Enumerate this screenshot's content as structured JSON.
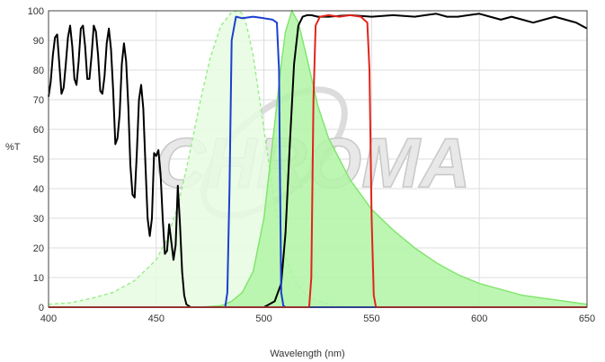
{
  "watermark": "CHROMA",
  "chart_data": {
    "type": "area",
    "xlabel": "Wavelength (nm)",
    "ylabel": "%T",
    "xlim": [
      400,
      650
    ],
    "ylim": [
      0,
      100
    ],
    "x_ticks": [
      400,
      450,
      500,
      550,
      600,
      650
    ],
    "y_ticks": [
      0,
      10,
      20,
      30,
      40,
      50,
      60,
      70,
      80,
      90,
      100
    ],
    "grid": true,
    "legend": "none",
    "series": [
      {
        "kind": "area",
        "fill": "#e6fbe2",
        "stroke": "#9cee8c",
        "dashed": true,
        "x": [
          400,
          410,
          420,
          430,
          440,
          450,
          455,
          460,
          465,
          470,
          475,
          480,
          485,
          488,
          490,
          492,
          495,
          500,
          505,
          510,
          515,
          520,
          525,
          530,
          535,
          540
        ],
        "y": [
          1,
          1.5,
          3,
          5,
          9,
          16,
          23,
          34,
          50,
          68,
          84,
          95,
          99.5,
          100,
          99,
          95,
          85,
          60,
          35,
          17,
          8,
          4,
          2,
          1,
          0.5,
          0
        ]
      },
      {
        "kind": "area",
        "fill": "#b2f5a6",
        "stroke": "#83e66f",
        "dashed": false,
        "x": [
          470,
          480,
          485,
          490,
          495,
          500,
          505,
          508,
          510,
          513,
          516,
          520,
          525,
          530,
          535,
          540,
          550,
          560,
          570,
          580,
          590,
          600,
          610,
          620,
          630,
          640,
          650
        ],
        "y": [
          0,
          0.5,
          2,
          5,
          12,
          30,
          62,
          82,
          93,
          100,
          96,
          84,
          68,
          57,
          50,
          43,
          33,
          26,
          20,
          15,
          11,
          8,
          6,
          4,
          3,
          2,
          1
        ]
      },
      {
        "kind": "line",
        "stroke": "#000000",
        "x": [
          400,
          401,
          402,
          403,
          404,
          405,
          406,
          407,
          408,
          409,
          410,
          411,
          412,
          413,
          414,
          415,
          416,
          417,
          418,
          419,
          420,
          421,
          422,
          423,
          424,
          425,
          426,
          427,
          428,
          429,
          430,
          431,
          432,
          433,
          434,
          435,
          436,
          437,
          438,
          439,
          440,
          441,
          442,
          443,
          444,
          445,
          446,
          447,
          448,
          449,
          450,
          451,
          452,
          453,
          454,
          455,
          456,
          457,
          458,
          459,
          460,
          461,
          462,
          463,
          464,
          465,
          466,
          467,
          468,
          469,
          470,
          471,
          472,
          473,
          474,
          475,
          476,
          477,
          478,
          479,
          480,
          481,
          482,
          483,
          484,
          485,
          488,
          490,
          495,
          500,
          505,
          508,
          510,
          512,
          514,
          516,
          518,
          520,
          522,
          525,
          530,
          540,
          550,
          560,
          570,
          575,
          580,
          585,
          590,
          595,
          600,
          605,
          610,
          615,
          620,
          625,
          630,
          635,
          640,
          645,
          650
        ],
        "y": [
          71,
          76,
          85,
          91,
          92,
          82,
          72,
          74,
          82,
          91,
          95,
          88,
          77,
          75,
          83,
          94,
          95,
          88,
          77,
          77,
          85,
          95,
          93,
          85,
          73,
          72,
          78,
          89,
          94,
          87,
          73,
          55,
          57,
          65,
          82,
          89,
          83,
          68,
          48,
          38,
          37,
          52,
          70,
          75,
          67,
          48,
          30,
          24,
          30,
          52,
          51,
          53,
          45,
          30,
          18,
          19,
          28,
          22,
          16,
          21,
          41,
          28,
          12,
          4,
          1,
          0.5,
          0,
          0,
          0,
          0,
          0,
          0,
          0,
          0,
          0,
          0,
          0,
          0,
          0,
          0,
          0,
          0,
          0,
          0,
          0,
          0,
          0,
          0,
          0,
          0,
          2,
          8,
          25,
          55,
          82,
          95,
          98,
          98.5,
          98.5,
          98,
          98,
          98.5,
          98,
          98.5,
          98,
          98.5,
          99,
          98,
          98,
          98.5,
          99,
          98,
          97,
          98,
          97,
          96,
          97,
          98,
          97,
          96,
          94
        ]
      },
      {
        "kind": "line",
        "stroke": "#1c3fcf",
        "x": [
          400,
          482,
          483,
          484,
          485,
          487,
          490,
          495,
          500,
          504,
          506,
          507,
          507.5,
          508,
          509,
          510,
          650
        ],
        "y": [
          0,
          0,
          5,
          40,
          90,
          98,
          97.5,
          98,
          97.5,
          97,
          96,
          80,
          40,
          5,
          0.5,
          0,
          0
        ]
      },
      {
        "kind": "line",
        "stroke": "#e2241b",
        "x": [
          400,
          521,
          522,
          523,
          524,
          526,
          530,
          535,
          540,
          545,
          548,
          549,
          550,
          551,
          552,
          650
        ],
        "y": [
          0,
          0,
          10,
          70,
          95,
          98,
          98.5,
          98,
          98.5,
          98,
          96,
          80,
          30,
          4,
          0,
          0
        ]
      }
    ]
  }
}
